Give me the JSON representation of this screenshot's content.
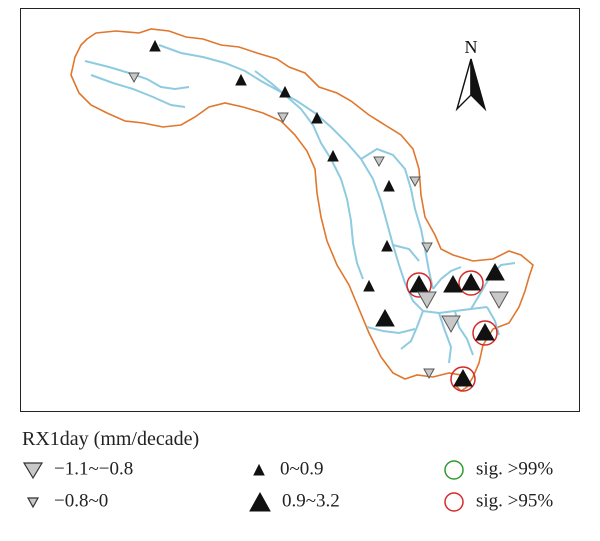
{
  "map": {
    "north_label": "N",
    "colors": {
      "boundary": "#e0772c",
      "river": "#8fcbe0",
      "negative_marker": "#c8c8c8",
      "positive_marker": "#111111",
      "sig_99": "#2e9b2e",
      "sig_95": "#d62a2a"
    },
    "icon": "north-arrow-icon"
  },
  "legend": {
    "title": "RX1day (mm/decade)",
    "items": [
      {
        "label": "−1.1~−0.8",
        "marker": "large-down-triangle-icon"
      },
      {
        "label": "−0.8~0",
        "marker": "small-down-triangle-icon"
      },
      {
        "label": "0~0.9",
        "marker": "small-up-triangle-icon"
      },
      {
        "label": "0.9~3.2",
        "marker": "large-up-triangle-icon"
      },
      {
        "label": "sig. >99%",
        "marker": "green-circle-icon"
      },
      {
        "label": "sig. >95%",
        "marker": "red-circle-icon"
      }
    ]
  }
}
